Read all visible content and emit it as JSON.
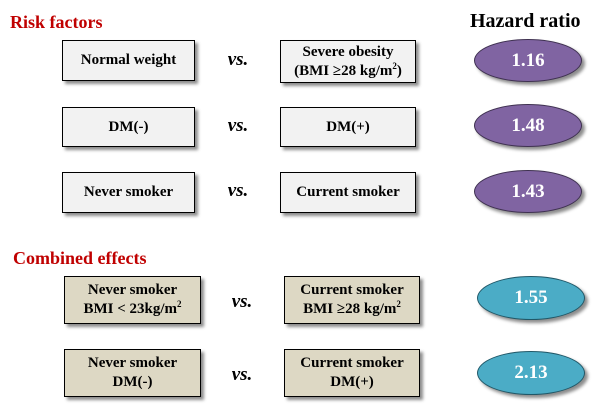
{
  "header": {
    "risk_title": "Risk factors",
    "combined_title": "Combined effects",
    "hazard_ratio_label": "Hazard ratio"
  },
  "vs_label": "vs.",
  "risk_rows": [
    {
      "left": [
        "Normal weight"
      ],
      "right": [
        "Severe obesity",
        "(BMI ≥28 kg/m²)"
      ],
      "hr": "1.16"
    },
    {
      "left": [
        "DM(-)"
      ],
      "right": [
        "DM(+)"
      ],
      "hr": "1.48"
    },
    {
      "left": [
        "Never smoker"
      ],
      "right": [
        "Current smoker"
      ],
      "hr": "1.43"
    }
  ],
  "combined_rows": [
    {
      "left": [
        "Never smoker",
        "BMI < 23kg/m²"
      ],
      "right": [
        "Current smoker",
        "BMI ≥28 kg/m²"
      ],
      "hr": "1.55"
    },
    {
      "left": [
        "Never smoker",
        "DM(-)"
      ],
      "right": [
        "Current smoker",
        "DM(+)"
      ],
      "hr": "2.13"
    }
  ],
  "colors": {
    "title_red": "#c00000",
    "risk_box": "#f2f2f2",
    "combined_box": "#ddd8c4",
    "oval_purple": "#8064a2",
    "oval_teal": "#4bacc6"
  }
}
